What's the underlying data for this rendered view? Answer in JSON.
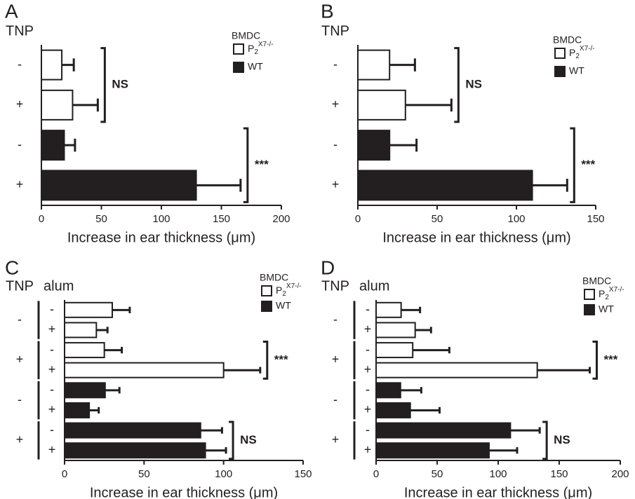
{
  "chart_data": [
    {
      "type": "bar",
      "orientation": "horizontal",
      "panel_label": "A",
      "row_headers": [
        "TNP"
      ],
      "categories": [
        "-",
        "+",
        "-",
        "+"
      ],
      "legend_title": "BMDC",
      "series": [
        {
          "name": "P2X7-/-",
          "color": "#ffffff",
          "values": [
            17,
            26,
            null,
            null
          ],
          "errors": [
            10,
            21,
            null,
            null
          ]
        },
        {
          "name": "WT",
          "color": "#231f20",
          "values": [
            null,
            null,
            19,
            129
          ],
          "errors": [
            null,
            null,
            9,
            37
          ]
        }
      ],
      "annotations": [
        "NS",
        "***"
      ],
      "xlabel": "Increase in ear thickness (μm)",
      "xlim": [
        0,
        200
      ],
      "xticks": [
        0,
        50,
        100,
        150,
        200
      ]
    },
    {
      "type": "bar",
      "orientation": "horizontal",
      "panel_label": "B",
      "row_headers": [
        "TNP"
      ],
      "categories": [
        "-",
        "+",
        "-",
        "+"
      ],
      "legend_title": "BMDC",
      "series": [
        {
          "name": "P2X7-/-",
          "color": "#ffffff",
          "values": [
            20,
            30,
            null,
            null
          ],
          "errors": [
            16,
            29,
            null,
            null
          ]
        },
        {
          "name": "WT",
          "color": "#231f20",
          "values": [
            null,
            null,
            20,
            110
          ],
          "errors": [
            null,
            null,
            17,
            22
          ]
        }
      ],
      "annotations": [
        "NS",
        "***"
      ],
      "xlabel": "Increase in ear thickness (μm)",
      "xlim": [
        0,
        150
      ],
      "xticks": [
        0,
        50,
        100,
        150
      ]
    },
    {
      "type": "bar",
      "orientation": "horizontal",
      "panel_label": "C",
      "row_headers": [
        "TNP",
        "alum"
      ],
      "categories": [
        "-",
        "+",
        "-",
        "+",
        "-",
        "+",
        "-",
        "+"
      ],
      "groups": [
        "-",
        "+",
        "-",
        "+"
      ],
      "legend_title": "BMDC",
      "series": [
        {
          "name": "P2X7-/-",
          "color": "#ffffff",
          "values": [
            30,
            20,
            25,
            100,
            null,
            null,
            null,
            null
          ],
          "errors": [
            11,
            7,
            11,
            23,
            null,
            null,
            null,
            null
          ]
        },
        {
          "name": "WT",
          "color": "#231f20",
          "values": [
            null,
            null,
            null,
            null,
            25.5,
            15.5,
            85.5,
            88.5
          ],
          "errors": [
            null,
            null,
            null,
            null,
            9,
            6,
            13.5,
            13
          ]
        }
      ],
      "annotations": [
        "***",
        "NS"
      ],
      "xlabel": "Increase in ear thickness (μm)",
      "xlim": [
        0,
        150
      ],
      "xticks": [
        0,
        50,
        100,
        150
      ]
    },
    {
      "type": "bar",
      "orientation": "horizontal",
      "panel_label": "D",
      "row_headers": [
        "TNP",
        "alum"
      ],
      "categories": [
        "-",
        "+",
        "-",
        "+",
        "-",
        "+",
        "-",
        "+"
      ],
      "groups": [
        "-",
        "+",
        "-",
        "+"
      ],
      "legend_title": "BMDC",
      "series": [
        {
          "name": "P2X7-/-",
          "color": "#ffffff",
          "values": [
            20.5,
            32,
            30,
            132,
            null,
            null,
            null,
            null
          ],
          "errors": [
            15.5,
            13,
            30,
            43,
            null,
            null,
            null,
            null
          ]
        },
        {
          "name": "WT",
          "color": "#231f20",
          "values": [
            null,
            null,
            null,
            null,
            20,
            28,
            110,
            92.5
          ],
          "errors": [
            null,
            null,
            null,
            null,
            17,
            24,
            24,
            23
          ]
        }
      ],
      "annotations": [
        "***",
        "NS"
      ],
      "xlabel": "Increase in ear thickness (μm)",
      "xlim": [
        0,
        200
      ],
      "xticks": [
        0,
        50,
        100,
        150,
        200
      ]
    }
  ]
}
